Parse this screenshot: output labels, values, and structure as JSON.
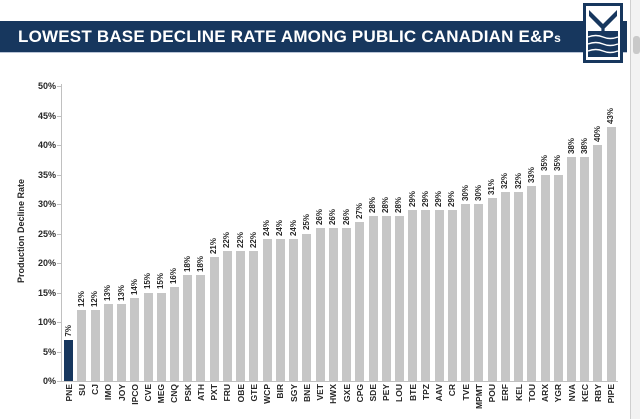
{
  "header": {
    "title_main": "LOWEST BASE DECLINE RATE AMONG PUBLIC CANADIAN E&P",
    "title_suffix": "s",
    "band_color": "#17375e"
  },
  "logo": {
    "icon": "down-arrow-over-waves-logo",
    "color": "#17375e"
  },
  "chart_data": {
    "type": "bar",
    "title": "LOWEST BASE DECLINE RATE AMONG PUBLIC CANADIAN E&Ps",
    "ylabel": "Production Decline Rate",
    "xlabel": "",
    "ylim": [
      0,
      50
    ],
    "ytick_step": 5,
    "ytick_labels": [
      "0%",
      "5%",
      "10%",
      "15%",
      "20%",
      "25%",
      "30%",
      "35%",
      "40%",
      "45%",
      "50%"
    ],
    "grid": false,
    "legend": "none",
    "categories": [
      "PNE",
      "SU",
      "CJ",
      "IMO",
      "JOY",
      "IPCO",
      "CVE",
      "MEG",
      "CNQ",
      "PSK",
      "ATH",
      "PXT",
      "FRU",
      "OBE",
      "GTE",
      "WCP",
      "BIR",
      "SGY",
      "BNE",
      "VET",
      "HWX",
      "GXE",
      "CPG",
      "SDE",
      "PEY",
      "LOU",
      "BTE",
      "TPZ",
      "AAV",
      "CR",
      "TVE",
      "MPMT",
      "POU",
      "ERF",
      "KEL",
      "TOU",
      "ARX",
      "YGR",
      "NVA",
      "KEC",
      "RBY",
      "PIPE"
    ],
    "values": [
      7,
      12,
      12,
      13,
      13,
      14,
      15,
      15,
      16,
      18,
      18,
      21,
      22,
      22,
      22,
      24,
      24,
      24,
      25,
      26,
      26,
      26,
      27,
      28,
      28,
      28,
      29,
      29,
      29,
      29,
      30,
      30,
      31,
      32,
      32,
      33,
      35,
      35,
      38,
      38,
      40,
      43
    ],
    "value_labels": [
      "7%",
      "12%",
      "12%",
      "13%",
      "13%",
      "14%",
      "15%",
      "15%",
      "16%",
      "18%",
      "18%",
      "21%",
      "22%",
      "22%",
      "22%",
      "24%",
      "24%",
      "24%",
      "25%",
      "26%",
      "26%",
      "26%",
      "27%",
      "28%",
      "28%",
      "28%",
      "29%",
      "29%",
      "29%",
      "29%",
      "30%",
      "30%",
      "31%",
      "32%",
      "32%",
      "33%",
      "35%",
      "35%",
      "38%",
      "38%",
      "40%",
      "43%"
    ],
    "bar_color": "#c6c6c6",
    "highlight_index": 0,
    "highlight_color": "#17375e",
    "label_color": "#262626"
  }
}
